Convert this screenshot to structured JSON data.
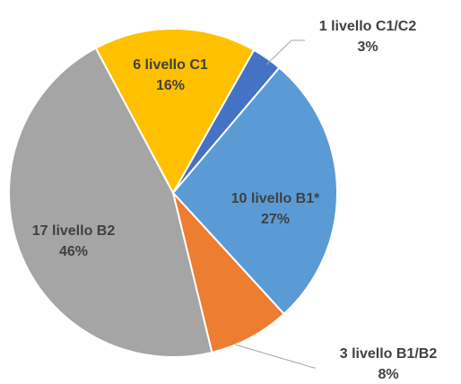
{
  "chart_data": {
    "type": "pie",
    "categories": [
      "1 livello C1/C2",
      "10 livello B1*",
      "3 livello B1/B2",
      "17 livello B2",
      "6 livello C1"
    ],
    "values": [
      3,
      27,
      8,
      46,
      16
    ],
    "value_labels": [
      "3%",
      "27%",
      "8%",
      "46%",
      "16%"
    ],
    "colors": [
      "#4472c4",
      "#5b9bd5",
      "#ed7d31",
      "#a5a5a5",
      "#ffc000"
    ]
  }
}
